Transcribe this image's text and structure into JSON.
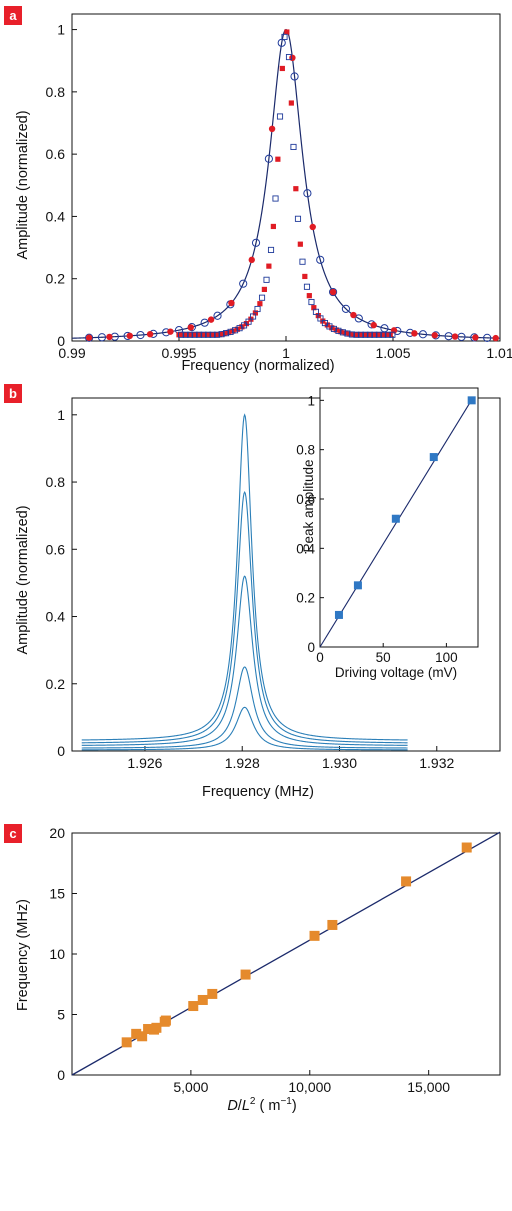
{
  "colors": {
    "badge": "#e8202a",
    "fit_line": "#1b2a6b",
    "red_marker": "#e01c24",
    "blue_marker": "#1f3a9a",
    "trace": "#2b7fb8",
    "inset_marker": "#2f78c4",
    "orange_marker": "#e58a2c"
  },
  "chart_data": [
    {
      "panel": "a",
      "type": "scatter",
      "xlabel": "Frequency (normalized)",
      "ylabel": "Amplitude (normalized)",
      "xlim": [
        0.99,
        1.01
      ],
      "ylim": [
        0,
        1.05
      ],
      "xticks": [
        0.99,
        0.995,
        1,
        1.005,
        1.01
      ],
      "xtick_labels": [
        "0.99",
        "0.995",
        "1",
        "1.005",
        "1.01"
      ],
      "yticks": [
        0,
        0.2,
        0.4,
        0.6,
        0.8,
        1
      ],
      "ytick_labels": [
        "0",
        "0.2",
        "0.4",
        "0.6",
        "0.8",
        "1"
      ],
      "series": [
        {
          "kind": "fit-line",
          "center": 1.0,
          "half_width": 0.00095,
          "x_range": [
            0.99,
            1.01
          ]
        },
        {
          "kind": "open-circles",
          "center": 1.0,
          "half_width": 0.00095,
          "x_range": [
            0.9908,
            1.0099
          ],
          "step": 0.0006
        },
        {
          "kind": "filled-circles",
          "center": 1.0,
          "half_width": 0.00095,
          "x_range": [
            0.9908,
            1.0099
          ],
          "step": 0.00095
        },
        {
          "kind": "filled-squares",
          "center": 1.0,
          "half_width": 0.00045,
          "x_range": [
            0.995,
            1.005
          ],
          "step": 0.00021
        },
        {
          "kind": "open-squares",
          "center": 1.0,
          "half_width": 0.00045,
          "x_range": [
            0.995,
            1.005
          ],
          "step": 0.00021,
          "offset": 0.0001
        }
      ]
    },
    {
      "panel": "b",
      "type": "line",
      "xlabel": "Frequency (MHz)",
      "ylabel": "Amplitude (normalized)",
      "xlim": [
        1.9245,
        1.9333
      ],
      "ylim": [
        0,
        1.05
      ],
      "xticks": [
        1.926,
        1.928,
        1.93,
        1.932
      ],
      "xtick_labels": [
        "1.926",
        "1.928",
        "1.930",
        "1.932"
      ],
      "yticks": [
        0,
        0.2,
        0.4,
        0.6,
        0.8,
        1
      ],
      "ytick_labels": [
        "0",
        "0.2",
        "0.4",
        "0.6",
        "0.8",
        "1"
      ],
      "center": 1.92805,
      "x_range": [
        1.9247,
        1.9314
      ],
      "traces": [
        {
          "peak": 1.0,
          "half_width": 0.00018,
          "floor": 0.03
        },
        {
          "peak": 0.77,
          "half_width": 0.00019,
          "floor": 0.022
        },
        {
          "peak": 0.52,
          "half_width": 0.0002,
          "floor": 0.015
        },
        {
          "peak": 0.25,
          "half_width": 0.00021,
          "floor": 0.008
        },
        {
          "peak": 0.13,
          "half_width": 0.00022,
          "floor": 0.003
        }
      ],
      "inset": {
        "type": "scatter",
        "xlabel": "Driving voltage (mV)",
        "ylabel": "Peak amplitude",
        "xlim": [
          0,
          125
        ],
        "ylim": [
          0,
          1.05
        ],
        "xticks": [
          0,
          50,
          100
        ],
        "xtick_labels": [
          "0",
          "50",
          "100"
        ],
        "yticks": [
          0,
          0.2,
          0.4,
          0.6,
          0.8,
          1
        ],
        "ytick_labels": [
          "0",
          "0.2",
          "0.4",
          "0.6",
          "0.8",
          "1"
        ],
        "x": [
          15,
          30,
          60,
          90,
          120
        ],
        "y": [
          0.13,
          0.25,
          0.52,
          0.77,
          1.0
        ],
        "fit": {
          "slope": 0.00835,
          "intercept": 0
        }
      }
    },
    {
      "panel": "c",
      "type": "scatter",
      "xlabel_parts": [
        "D",
        "/",
        "L",
        "2",
        " ( m",
        "−1",
        ")"
      ],
      "ylabel": "Frequency (MHz)",
      "xlim": [
        0,
        18000
      ],
      "ylim": [
        0,
        20
      ],
      "xticks": [
        5000,
        10000,
        15000
      ],
      "xtick_labels": [
        "5,000",
        "10,000",
        "15,000"
      ],
      "yticks": [
        0,
        5,
        10,
        15,
        20
      ],
      "ytick_labels": [
        "0",
        "5",
        "10",
        "15",
        "20"
      ],
      "x": [
        2300,
        2700,
        2950,
        3200,
        3450,
        3550,
        3900,
        3950,
        5100,
        5500,
        5900,
        7300,
        10200,
        10950,
        14050,
        16600
      ],
      "y": [
        2.7,
        3.4,
        3.2,
        3.8,
        3.75,
        3.9,
        4.4,
        4.5,
        5.7,
        6.2,
        6.7,
        8.3,
        11.5,
        12.4,
        16.0,
        18.8
      ],
      "fit": {
        "slope": 0.001115,
        "intercept": 0
      }
    }
  ],
  "panels": {
    "a": {
      "label": "a"
    },
    "b": {
      "label": "b"
    },
    "c": {
      "label": "c"
    }
  }
}
